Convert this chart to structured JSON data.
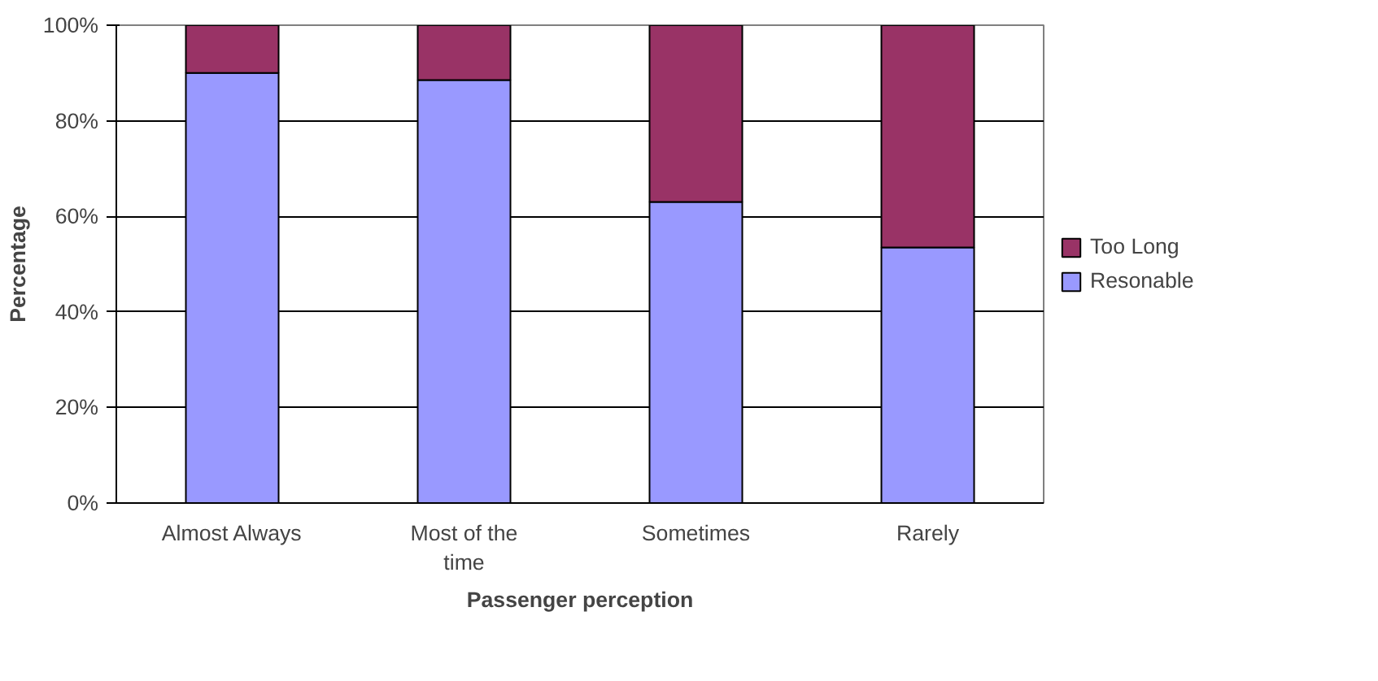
{
  "chart_data": {
    "type": "bar",
    "stacked": true,
    "xlabel": "Passenger perception",
    "ylabel": "Percentage",
    "categories": [
      "Almost Always",
      "Most of the time",
      "Sometimes",
      "Rarely"
    ],
    "series": [
      {
        "name": "Resonable",
        "color": "#9999ff",
        "values": [
          90,
          88.5,
          63,
          53.5
        ]
      },
      {
        "name": "Too Long",
        "color": "#993366",
        "values": [
          10,
          11.5,
          37,
          46.5
        ]
      }
    ],
    "ylim": [
      0,
      100
    ],
    "yticks": [
      {
        "value": 0,
        "label": "0%"
      },
      {
        "value": 20,
        "label": "20%"
      },
      {
        "value": 40,
        "label": "40%"
      },
      {
        "value": 60,
        "label": "60%"
      },
      {
        "value": 80,
        "label": "80%"
      },
      {
        "value": 100,
        "label": "100%"
      }
    ],
    "grid": "y",
    "legend": "right"
  }
}
